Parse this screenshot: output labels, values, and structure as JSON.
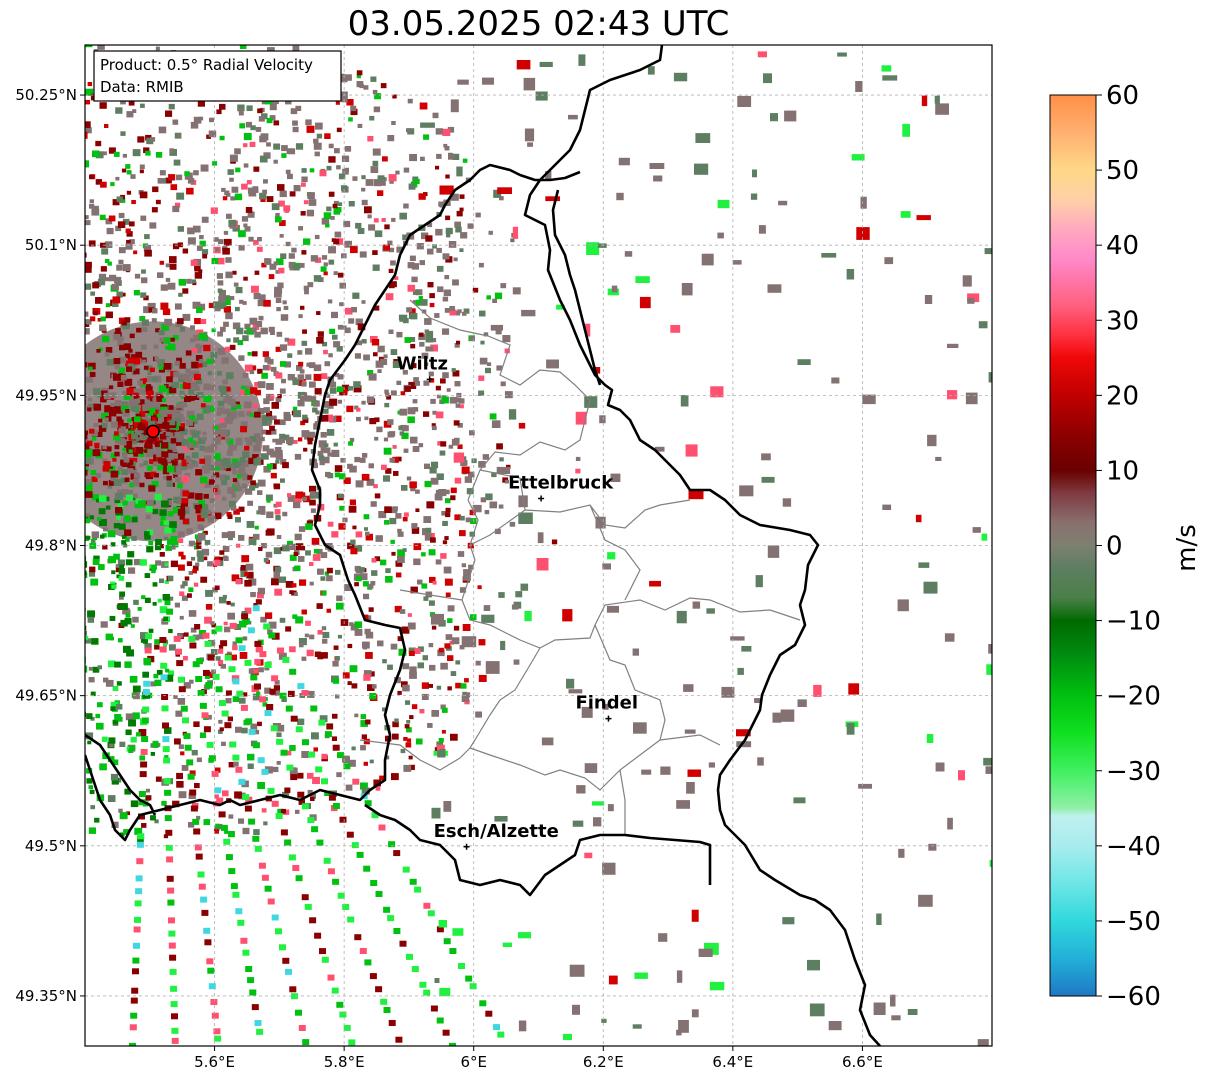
{
  "title": "03.05.2025 02:43 UTC",
  "info_box": {
    "product": "Product: 0.5° Radial Velocity",
    "data": "Data: RMIB"
  },
  "map": {
    "lon_range": [
      5.4,
      6.8
    ],
    "lat_range": [
      49.3,
      50.3
    ],
    "lat_ticks": [
      {
        "value": 50.25,
        "label": "50.25°N"
      },
      {
        "value": 50.1,
        "label": "50.1°N"
      },
      {
        "value": 49.95,
        "label": "49.95°N"
      },
      {
        "value": 49.8,
        "label": "49.8°N"
      },
      {
        "value": 49.65,
        "label": "49.65°N"
      },
      {
        "value": 49.5,
        "label": "49.5°N"
      },
      {
        "value": 49.35,
        "label": "49.35°N"
      }
    ],
    "lon_ticks": [
      {
        "value": 5.6,
        "label": "5.6°E"
      },
      {
        "value": 5.8,
        "label": "5.8°E"
      },
      {
        "value": 6.0,
        "label": "6°E"
      },
      {
        "value": 6.2,
        "label": "6.2°E"
      },
      {
        "value": 6.4,
        "label": "6.4°E"
      },
      {
        "value": 6.6,
        "label": "6.6°E"
      }
    ],
    "radar_site": {
      "lon": 5.505,
      "lat": 49.914,
      "color": "#ff0000"
    },
    "cities": [
      {
        "name": "Wiltz",
        "lon": 5.932,
        "lat": 49.966
      },
      {
        "name": "Ettelbruck",
        "lon": 6.104,
        "lat": 49.847
      },
      {
        "name": "Findel",
        "lon": 6.208,
        "lat": 49.627
      },
      {
        "name": "Esch/Alzette",
        "lon": 5.989,
        "lat": 49.499
      }
    ]
  },
  "colorbar": {
    "label": "m/s",
    "min": -60,
    "max": 60,
    "ticks": [
      {
        "value": 60,
        "label": "60"
      },
      {
        "value": 50,
        "label": "50"
      },
      {
        "value": 40,
        "label": "40"
      },
      {
        "value": 30,
        "label": "30"
      },
      {
        "value": 20,
        "label": "20"
      },
      {
        "value": 10,
        "label": "10"
      },
      {
        "value": 0,
        "label": "0"
      },
      {
        "value": -10,
        "label": "−10"
      },
      {
        "value": -20,
        "label": "−20"
      },
      {
        "value": -30,
        "label": "−30"
      },
      {
        "value": -40,
        "label": "−40"
      },
      {
        "value": -50,
        "label": "−50"
      },
      {
        "value": -60,
        "label": "−60"
      }
    ],
    "stops": [
      {
        "v": -60,
        "c": "#1f78c4"
      },
      {
        "v": -55,
        "c": "#22b0d8"
      },
      {
        "v": -50,
        "c": "#30d8dc"
      },
      {
        "v": -45,
        "c": "#6ee6e6"
      },
      {
        "v": -40,
        "c": "#a8ecee"
      },
      {
        "v": -36,
        "c": "#c0f0f0"
      },
      {
        "v": -35,
        "c": "#90f0a8"
      },
      {
        "v": -30,
        "c": "#40f060"
      },
      {
        "v": -25,
        "c": "#10e020"
      },
      {
        "v": -20,
        "c": "#00c010"
      },
      {
        "v": -15,
        "c": "#009010"
      },
      {
        "v": -10,
        "c": "#006a00"
      },
      {
        "v": -7,
        "c": "#4a8048"
      },
      {
        "v": -3,
        "c": "#5e7e62"
      },
      {
        "v": 0,
        "c": "#7e8070"
      },
      {
        "v": 3,
        "c": "#8a7070"
      },
      {
        "v": 7,
        "c": "#7e3a40"
      },
      {
        "v": 10,
        "c": "#6a0000"
      },
      {
        "v": 15,
        "c": "#900000"
      },
      {
        "v": 20,
        "c": "#c00000"
      },
      {
        "v": 25,
        "c": "#f00808"
      },
      {
        "v": 28,
        "c": "#ff3040"
      },
      {
        "v": 32,
        "c": "#ff6080"
      },
      {
        "v": 38,
        "c": "#ff88c8"
      },
      {
        "v": 42,
        "c": "#ffa8c0"
      },
      {
        "v": 46,
        "c": "#ffd0a8"
      },
      {
        "v": 50,
        "c": "#ffd888"
      },
      {
        "v": 55,
        "c": "#ffb070"
      },
      {
        "v": 60,
        "c": "#ff9048"
      }
    ]
  },
  "echo_colors": {
    "zero": "#847272",
    "zero_green": "#5e7e62",
    "neg_dark": "#007a00",
    "neg_mid": "#00c010",
    "neg_light": "#20f040",
    "neg_cyan": "#40d8e0",
    "pos_dark": "#8a0000",
    "pos_mid": "#d00000",
    "pos_pink": "#ff5070",
    "pos_orange": "#ffb060"
  }
}
